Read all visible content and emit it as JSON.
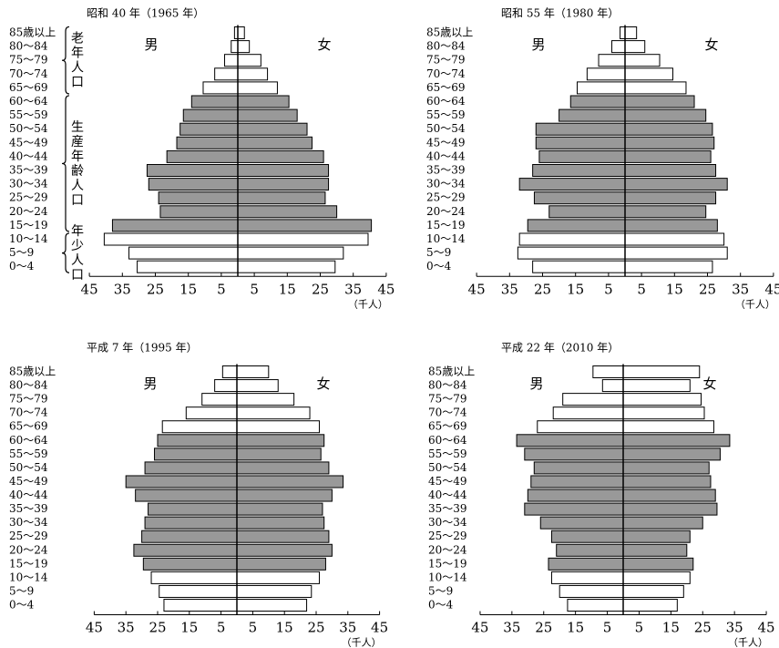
{
  "chart_data": [
    {
      "type": "pyramid",
      "title": "昭和 40 年（1965 年）",
      "categories": [
        "85歳以上",
        "80～84",
        "75～79",
        "70～74",
        "65～69",
        "60～64",
        "55～59",
        "50～54",
        "45～49",
        "40～44",
        "35～39",
        "30～34",
        "25～29",
        "20～24",
        "15～19",
        "10～14",
        "5～9",
        "0～4"
      ],
      "series": [
        {
          "name": "男",
          "color": [
            "#ffffff",
            "#ffffff",
            "#ffffff",
            "#ffffff",
            "#ffffff",
            "#999999",
            "#999999",
            "#999999",
            "#999999",
            "#999999",
            "#999999",
            "#999999",
            "#999999",
            "#999999",
            "#999999",
            "#ffffff",
            "#ffffff",
            "#ffffff"
          ],
          "values": [
            1,
            2,
            4,
            7,
            10.5,
            14,
            16.5,
            17.5,
            18.5,
            21.5,
            27.5,
            27,
            24,
            23.5,
            38,
            40.5,
            33,
            30.5
          ]
        },
        {
          "name": "女",
          "color": [
            "#ffffff",
            "#ffffff",
            "#ffffff",
            "#ffffff",
            "#ffffff",
            "#999999",
            "#999999",
            "#999999",
            "#999999",
            "#999999",
            "#999999",
            "#999999",
            "#999999",
            "#999999",
            "#999999",
            "#ffffff",
            "#ffffff",
            "#ffffff"
          ],
          "values": [
            2,
            3.5,
            7,
            9,
            12,
            15.5,
            18,
            21,
            22.5,
            26,
            27.5,
            27.5,
            26.5,
            30,
            40.5,
            39.5,
            32,
            29.5
          ]
        }
      ],
      "xlim": [
        0,
        45
      ],
      "xticks_male": [
        45,
        35,
        25,
        15,
        5
      ],
      "xticks_female": [
        5,
        15,
        25,
        35,
        45
      ],
      "unit": "（千人）",
      "age_groups": [
        {
          "label": "老年人口",
          "rows": [
            0,
            4
          ]
        },
        {
          "label": "生産年齢人口",
          "rows": [
            5,
            14
          ]
        },
        {
          "label": "年少人口",
          "rows": [
            15,
            17
          ]
        }
      ]
    },
    {
      "type": "pyramid",
      "title": "昭和 55 年（1980 年）",
      "categories": [
        "85歳以上",
        "80～84",
        "75～79",
        "70～74",
        "65～69",
        "60～64",
        "55～59",
        "50～54",
        "45～49",
        "40～44",
        "35～39",
        "30～34",
        "25～29",
        "20～24",
        "15～19",
        "10～14",
        "5～9",
        "0～4"
      ],
      "series": [
        {
          "name": "男",
          "color": [
            "#ffffff",
            "#ffffff",
            "#ffffff",
            "#ffffff",
            "#ffffff",
            "#999999",
            "#999999",
            "#999999",
            "#999999",
            "#999999",
            "#999999",
            "#999999",
            "#999999",
            "#999999",
            "#999999",
            "#ffffff",
            "#ffffff",
            "#ffffff"
          ],
          "values": [
            1.5,
            4,
            8,
            11.5,
            14.5,
            16.5,
            20,
            27,
            27,
            26,
            28,
            32,
            27.5,
            23,
            29.5,
            32,
            32.5,
            28
          ]
        },
        {
          "name": "女",
          "color": [
            "#ffffff",
            "#ffffff",
            "#ffffff",
            "#ffffff",
            "#ffffff",
            "#999999",
            "#999999",
            "#999999",
            "#999999",
            "#999999",
            "#999999",
            "#999999",
            "#999999",
            "#999999",
            "#999999",
            "#ffffff",
            "#ffffff",
            "#ffffff"
          ],
          "values": [
            3.5,
            6,
            10.5,
            14.5,
            18.5,
            21,
            24.5,
            26.5,
            27,
            26,
            27.5,
            31,
            27.5,
            24.5,
            28,
            30,
            31,
            26.5
          ]
        }
      ],
      "xlim": [
        0,
        45
      ],
      "xticks_male": [
        45,
        35,
        25,
        15,
        5
      ],
      "xticks_female": [
        5,
        15,
        25,
        35,
        45
      ],
      "unit": "（千人）"
    },
    {
      "type": "pyramid",
      "title": "平成 7 年（1995 年）",
      "categories": [
        "85歳以上",
        "80～84",
        "75～79",
        "70～74",
        "65～69",
        "60～64",
        "55～59",
        "50～54",
        "45～49",
        "40～44",
        "35～39",
        "30～34",
        "25～29",
        "20～24",
        "15～19",
        "10～14",
        "5～9",
        "0～4"
      ],
      "series": [
        {
          "name": "男",
          "color": [
            "#ffffff",
            "#ffffff",
            "#ffffff",
            "#ffffff",
            "#ffffff",
            "#999999",
            "#999999",
            "#999999",
            "#999999",
            "#999999",
            "#999999",
            "#999999",
            "#999999",
            "#999999",
            "#999999",
            "#ffffff",
            "#ffffff",
            "#ffffff"
          ],
          "values": [
            4.5,
            7,
            11,
            16,
            23.5,
            25,
            26,
            29,
            35,
            32,
            28,
            29,
            30,
            32.5,
            29.5,
            27,
            24.5,
            23
          ]
        },
        {
          "name": "女",
          "color": [
            "#ffffff",
            "#ffffff",
            "#ffffff",
            "#ffffff",
            "#ffffff",
            "#999999",
            "#999999",
            "#999999",
            "#999999",
            "#999999",
            "#999999",
            "#999999",
            "#999999",
            "#999999",
            "#999999",
            "#ffffff",
            "#ffffff",
            "#ffffff"
          ],
          "values": [
            10,
            13,
            18,
            23,
            26,
            27.5,
            26.5,
            29,
            33.5,
            30,
            27,
            27.5,
            29,
            30,
            28,
            26,
            23.5,
            22
          ]
        }
      ],
      "xlim": [
        0,
        45
      ],
      "xticks_male": [
        45,
        35,
        25,
        15,
        5
      ],
      "xticks_female": [
        5,
        15,
        25,
        35,
        45
      ],
      "unit": "（千人）"
    },
    {
      "type": "pyramid",
      "title": "平成 22 年（2010 年）",
      "categories": [
        "85歳以上",
        "80～84",
        "75～79",
        "70～74",
        "65～69",
        "60～64",
        "55～59",
        "50～54",
        "45～49",
        "40～44",
        "35～39",
        "30～34",
        "25～29",
        "20～24",
        "15～19",
        "10～14",
        "5～9",
        "0～4"
      ],
      "series": [
        {
          "name": "男",
          "color": [
            "#ffffff",
            "#ffffff",
            "#ffffff",
            "#ffffff",
            "#ffffff",
            "#999999",
            "#999999",
            "#999999",
            "#999999",
            "#999999",
            "#999999",
            "#999999",
            "#999999",
            "#999999",
            "#999999",
            "#ffffff",
            "#ffffff",
            "#ffffff"
          ],
          "values": [
            9.5,
            6.5,
            19,
            22,
            27,
            33.5,
            31,
            28,
            29,
            30,
            31,
            26,
            22.5,
            21,
            23.5,
            22.5,
            20,
            17.5
          ]
        },
        {
          "name": "女",
          "color": [
            "#ffffff",
            "#ffffff",
            "#ffffff",
            "#ffffff",
            "#ffffff",
            "#999999",
            "#999999",
            "#999999",
            "#999999",
            "#999999",
            "#999999",
            "#999999",
            "#999999",
            "#999999",
            "#999999",
            "#ffffff",
            "#ffffff",
            "#ffffff"
          ],
          "values": [
            24,
            21,
            24.5,
            25.5,
            28.5,
            33.5,
            30.5,
            27,
            27.5,
            29,
            29.5,
            25,
            21,
            20,
            22,
            21,
            19,
            17
          ]
        }
      ],
      "xlim": [
        0,
        45
      ],
      "xticks_male": [
        45,
        35,
        25,
        15,
        5
      ],
      "xticks_female": [
        5,
        15,
        25,
        35,
        45
      ],
      "unit": "（千人）"
    }
  ]
}
